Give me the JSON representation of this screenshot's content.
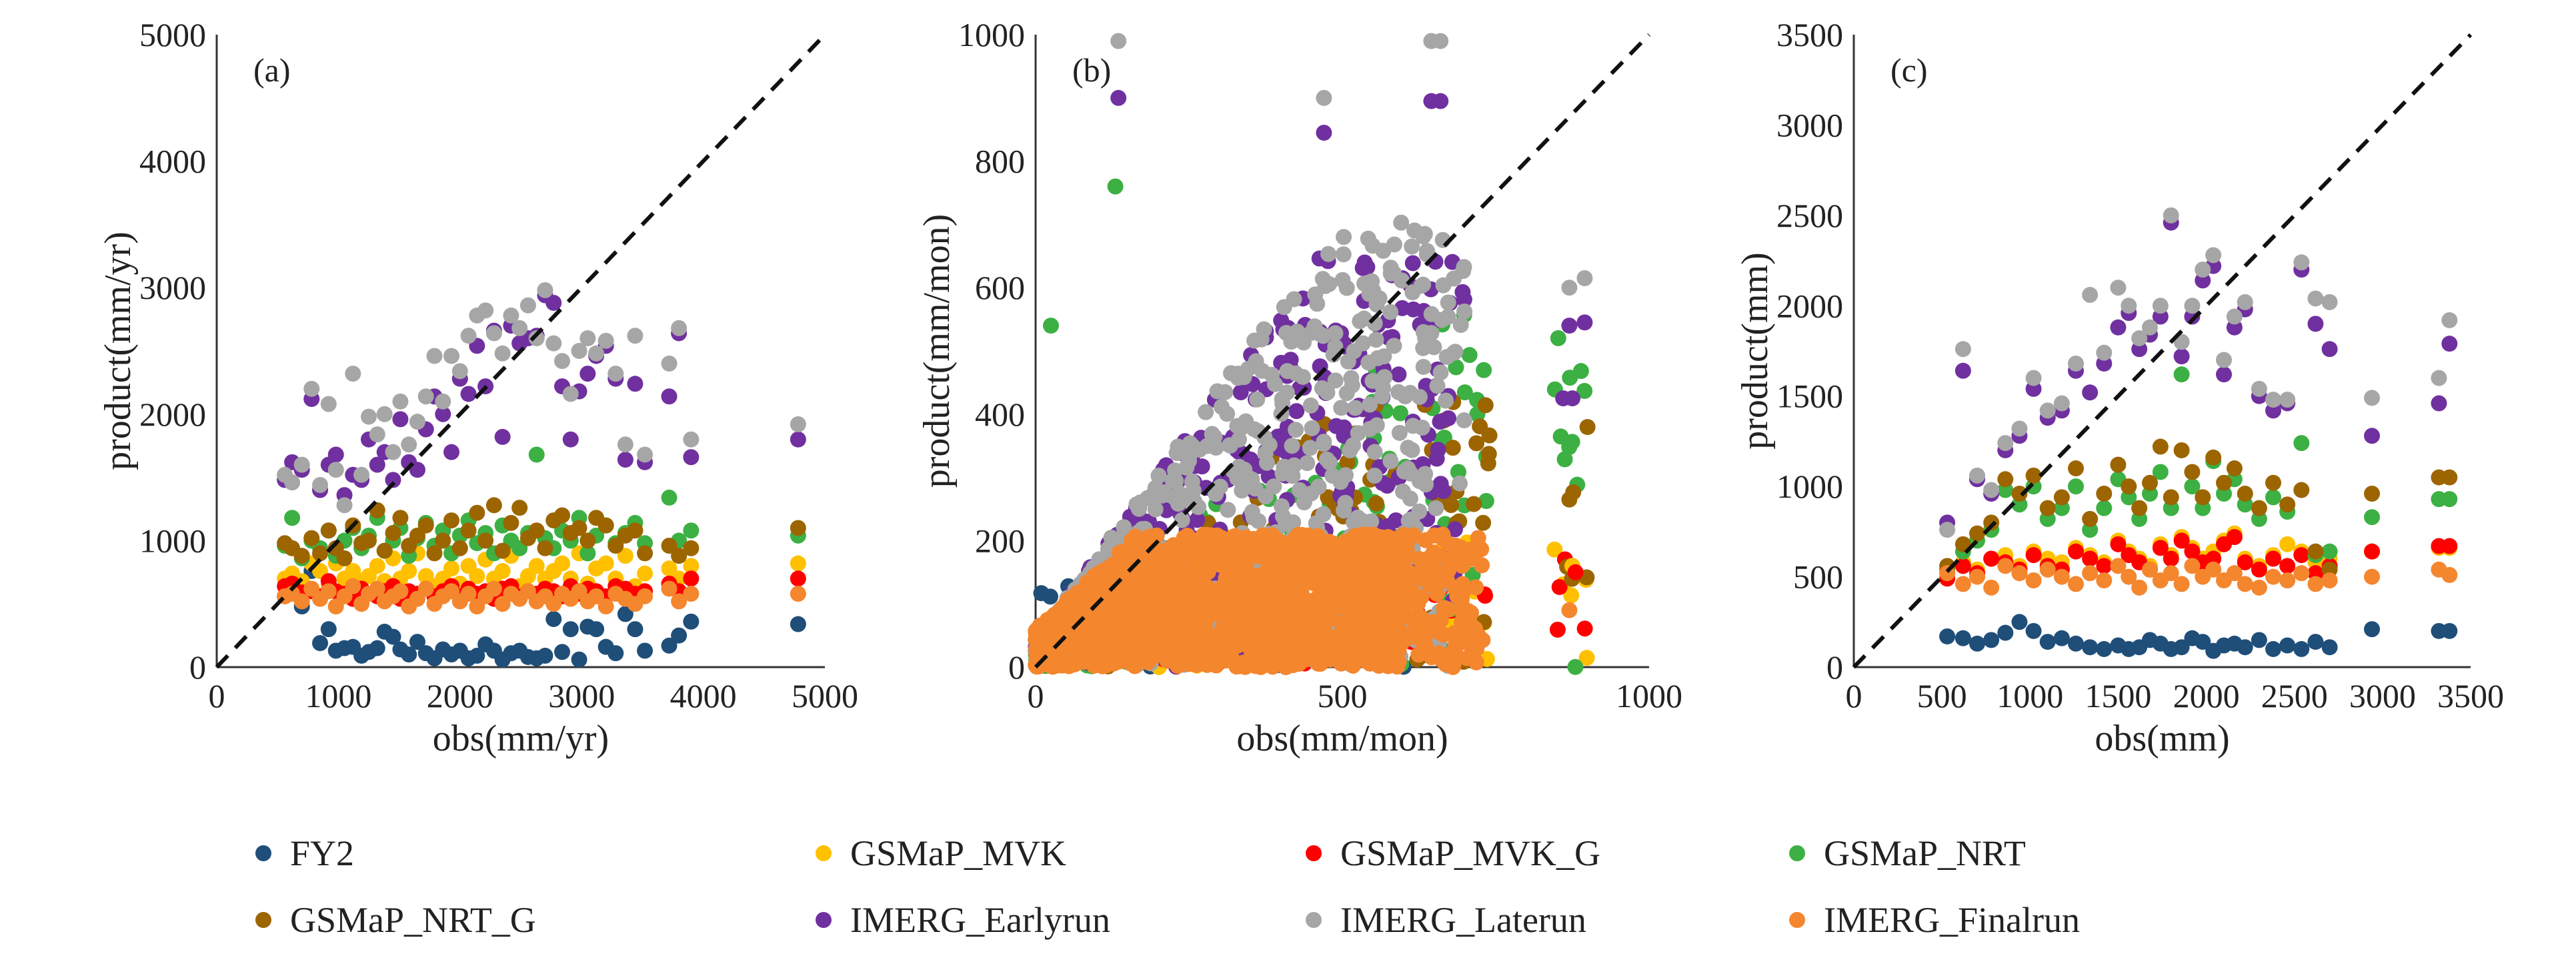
{
  "legend": [
    {
      "name": "FY2",
      "color": "#1f4e79"
    },
    {
      "name": "GSMaP_MVK",
      "color": "#ffc000"
    },
    {
      "name": "GSMaP_MVK_G",
      "color": "#ff0000"
    },
    {
      "name": "GSMaP_NRT",
      "color": "#3cb043"
    },
    {
      "name": "GSMaP_NRT_G",
      "color": "#9c6500"
    },
    {
      "name": "IMERG_Earlyrun",
      "color": "#7030a0"
    },
    {
      "name": "IMERG_Laterun",
      "color": "#a6a6a6"
    },
    {
      "name": "IMERG_Finalrun",
      "color": "#f4862e"
    }
  ],
  "chart_data": [
    {
      "type": "scatter",
      "panel_label": "(a)",
      "xlabel": "obs(mm/yr)",
      "ylabel": "product(mm/yr)",
      "xlim": [
        0,
        5000
      ],
      "ylim": [
        0,
        5000
      ],
      "xticks": [
        "0",
        "1000",
        "2000",
        "3000",
        "4000",
        "5000"
      ],
      "yticks": [
        "0",
        "1000",
        "2000",
        "3000",
        "4000",
        "5000"
      ],
      "reference_line": "1:1",
      "x": [
        560,
        620,
        700,
        780,
        850,
        920,
        980,
        1050,
        1120,
        1190,
        1250,
        1320,
        1380,
        1450,
        1510,
        1580,
        1650,
        1720,
        1790,
        1860,
        1930,
        2000,
        2070,
        2140,
        2210,
        2280,
        2350,
        2420,
        2490,
        2560,
        2630,
        2700,
        2770,
        2840,
        2910,
        2980,
        3050,
        3120,
        3200,
        3280,
        3360,
        3440,
        3520,
        3720,
        3800,
        3900,
        4780
      ],
      "series": [
        {
          "name": "FY2",
          "values": [
            560,
            600,
            480,
            760,
            190,
            300,
            130,
            150,
            160,
            90,
            120,
            150,
            280,
            240,
            140,
            100,
            200,
            110,
            70,
            140,
            100,
            130,
            70,
            90,
            180,
            130,
            60,
            110,
            130,
            80,
            70,
            90,
            380,
            120,
            300,
            60,
            320,
            300,
            160,
            110,
            420,
            300,
            130,
            170,
            250,
            360,
            340
          ]
        },
        {
          "name": "GSMaP_MVK",
          "values": [
            700,
            740,
            680,
            820,
            760,
            640,
            820,
            700,
            760,
            680,
            720,
            800,
            680,
            860,
            700,
            760,
            900,
            720,
            640,
            700,
            780,
            660,
            800,
            720,
            850,
            700,
            760,
            880,
            640,
            720,
            800,
            700,
            760,
            820,
            700,
            900,
            660,
            780,
            820,
            700,
            880,
            640,
            740,
            780,
            700,
            800,
            820
          ]
        },
        {
          "name": "GSMaP_MVK_G",
          "values": [
            640,
            660,
            590,
            600,
            560,
            680,
            600,
            580,
            540,
            620,
            580,
            560,
            600,
            640,
            540,
            600,
            580,
            620,
            560,
            600,
            640,
            560,
            620,
            580,
            600,
            540,
            620,
            640,
            560,
            600,
            580,
            620,
            600,
            560,
            640,
            580,
            620,
            600,
            560,
            640,
            620,
            580,
            600,
            660,
            600,
            700,
            700
          ]
        },
        {
          "name": "GSMaP_NRT",
          "values": [
            960,
            1180,
            860,
            1000,
            940,
            1080,
            880,
            1000,
            1100,
            940,
            1040,
            1180,
            920,
            1000,
            1100,
            880,
            1020,
            1140,
            960,
            1080,
            900,
            1040,
            1160,
            980,
            1060,
            900,
            1120,
            1000,
            940,
            1060,
            1680,
            1020,
            940,
            1080,
            1000,
            1180,
            900,
            1040,
            1120,
            980,
            1060,
            1140,
            980,
            1340,
            1000,
            1080,
            1040
          ]
        },
        {
          "name": "GSMaP_NRT_G",
          "values": [
            980,
            940,
            880,
            1020,
            900,
            1080,
            940,
            860,
            1120,
            980,
            1000,
            1240,
            920,
            1060,
            1180,
            960,
            1040,
            1120,
            900,
            1000,
            1160,
            940,
            1080,
            1220,
            1000,
            1280,
            920,
            1140,
            1260,
            1020,
            1080,
            940,
            1160,
            1200,
            1060,
            1100,
            1000,
            1180,
            1120,
            960,
            1040,
            1080,
            900,
            960,
            880,
            940,
            1100
          ]
        },
        {
          "name": "IMERG_Earlyrun",
          "values": [
            1480,
            1620,
            1560,
            2120,
            1400,
            1600,
            1680,
            1360,
            1520,
            1480,
            1800,
            1600,
            1700,
            1480,
            1960,
            1620,
            1560,
            1880,
            2140,
            2000,
            1700,
            2280,
            2160,
            2540,
            2220,
            2660,
            1820,
            2700,
            2560,
            2600,
            2620,
            2940,
            2880,
            2220,
            1800,
            2180,
            2320,
            2460,
            2540,
            2280,
            1640,
            2240,
            1620,
            2140,
            2640,
            1660,
            1800
          ]
        },
        {
          "name": "IMERG_Laterun",
          "values": [
            1520,
            1460,
            1600,
            2200,
            1440,
            2080,
            1560,
            1280,
            2320,
            1520,
            1980,
            1840,
            2000,
            1700,
            2100,
            1760,
            1940,
            2140,
            2460,
            2100,
            2460,
            2340,
            2620,
            2780,
            2820,
            2640,
            2480,
            2780,
            2680,
            2860,
            2600,
            2980,
            2560,
            2420,
            2160,
            2500,
            2600,
            2480,
            2580,
            2320,
            1760,
            2620,
            1680,
            2400,
            2680,
            1800,
            1920
          ]
        },
        {
          "name": "IMERG_Finalrun",
          "values": [
            560,
            580,
            520,
            620,
            540,
            600,
            480,
            560,
            640,
            500,
            580,
            620,
            520,
            560,
            600,
            480,
            540,
            620,
            500,
            560,
            600,
            520,
            580,
            480,
            560,
            620,
            500,
            580,
            540,
            600,
            520,
            560,
            500,
            580,
            540,
            600,
            520,
            560,
            480,
            580,
            540,
            500,
            560,
            620,
            520,
            580,
            580
          ]
        }
      ]
    },
    {
      "type": "scatter",
      "panel_label": "(b)",
      "xlabel": "obs(mm/mon)",
      "ylabel": "product(mm/mon)",
      "xlim": [
        0,
        1000
      ],
      "ylim": [
        0,
        1000
      ],
      "xticks": [
        "0",
        "500",
        "1000"
      ],
      "yticks": [
        "0",
        "200",
        "400",
        "600",
        "800",
        "1000"
      ],
      "reference_line": "1:1",
      "dense_cloud": true,
      "series_extent": [
        {
          "name": "FY2",
          "xmax": 600,
          "ymax": 150
        },
        {
          "name": "GSMaP_MVK",
          "xmax": 880,
          "ymax": 280
        },
        {
          "name": "GSMaP_MVK_G",
          "xmax": 880,
          "ymax": 230
        },
        {
          "name": "GSMaP_NRT",
          "xmax": 900,
          "ymax": 760
        },
        {
          "name": "GSMaP_NRT_G",
          "xmax": 900,
          "ymax": 560
        },
        {
          "name": "IMERG_Earlyrun",
          "xmax": 900,
          "ymax": 900
        },
        {
          "name": "IMERG_Laterun",
          "xmax": 900,
          "ymax": 990
        },
        {
          "name": "IMERG_Finalrun",
          "xmax": 880,
          "ymax": 210
        }
      ],
      "highlight_points": [
        {
          "name": "IMERG_Laterun",
          "x": 135,
          "y": 990
        },
        {
          "name": "IMERG_Earlyrun",
          "x": 135,
          "y": 900
        },
        {
          "name": "GSMaP_NRT",
          "x": 130,
          "y": 760
        },
        {
          "name": "IMERG_Laterun",
          "x": 645,
          "y": 990
        },
        {
          "name": "IMERG_Laterun",
          "x": 660,
          "y": 990
        },
        {
          "name": "IMERG_Earlyrun",
          "x": 645,
          "y": 895
        },
        {
          "name": "IMERG_Earlyrun",
          "x": 660,
          "y": 895
        },
        {
          "name": "IMERG_Laterun",
          "x": 470,
          "y": 900
        },
        {
          "name": "IMERG_Earlyrun",
          "x": 470,
          "y": 845
        },
        {
          "name": "IMERG_Laterun",
          "x": 870,
          "y": 600
        },
        {
          "name": "IMERG_Laterun",
          "x": 895,
          "y": 615
        },
        {
          "name": "IMERG_Earlyrun",
          "x": 870,
          "y": 540
        },
        {
          "name": "IMERG_Earlyrun",
          "x": 895,
          "y": 545
        },
        {
          "name": "IMERG_Earlyrun",
          "x": 860,
          "y": 425
        },
        {
          "name": "IMERG_Earlyrun",
          "x": 875,
          "y": 425
        },
        {
          "name": "GSMaP_NRT_G",
          "x": 870,
          "y": 265
        },
        {
          "name": "GSMaP_MVK",
          "x": 875,
          "y": 160
        },
        {
          "name": "GSMaP_MVK_G",
          "x": 880,
          "y": 150
        },
        {
          "name": "IMERG_Finalrun",
          "x": 870,
          "y": 90
        },
        {
          "name": "GSMaP_NRT",
          "x": 25,
          "y": 540
        }
      ]
    },
    {
      "type": "scatter",
      "panel_label": "(c)",
      "xlabel": "obs(mm)",
      "ylabel": "product(mm)",
      "xlim": [
        0,
        3500
      ],
      "ylim": [
        0,
        3500
      ],
      "xticks": [
        "0",
        "500",
        "1000",
        "1500",
        "2000",
        "2500",
        "3000",
        "3500"
      ],
      "yticks": [
        "0",
        "500",
        "1000",
        "1500",
        "2000",
        "2500",
        "3000",
        "3500"
      ],
      "reference_line": "1:1",
      "x": [
        530,
        620,
        700,
        780,
        860,
        940,
        1020,
        1100,
        1180,
        1260,
        1340,
        1420,
        1500,
        1560,
        1620,
        1680,
        1740,
        1800,
        1860,
        1920,
        1980,
        2040,
        2100,
        2160,
        2220,
        2300,
        2380,
        2460,
        2540,
        2620,
        2700,
        2940,
        3320,
        3380
      ],
      "series": [
        {
          "name": "FY2",
          "values": [
            170,
            160,
            130,
            150,
            190,
            250,
            200,
            140,
            160,
            130,
            110,
            100,
            120,
            100,
            110,
            150,
            130,
            100,
            110,
            160,
            140,
            90,
            120,
            130,
            110,
            150,
            100,
            120,
            100,
            140,
            110,
            210,
            200,
            200
          ]
        },
        {
          "name": "GSMaP_MVK",
          "values": [
            520,
            580,
            540,
            600,
            620,
            560,
            640,
            600,
            580,
            660,
            620,
            580,
            700,
            640,
            600,
            560,
            680,
            620,
            720,
            660,
            600,
            640,
            700,
            740,
            600,
            560,
            620,
            680,
            640,
            580,
            600,
            640,
            660,
            660
          ]
        },
        {
          "name": "GSMaP_MVK_G",
          "values": [
            490,
            560,
            520,
            600,
            580,
            540,
            620,
            560,
            540,
            640,
            600,
            560,
            680,
            620,
            580,
            540,
            660,
            600,
            700,
            640,
            580,
            600,
            680,
            720,
            580,
            540,
            600,
            560,
            620,
            520,
            560,
            640,
            670,
            670
          ]
        },
        {
          "name": "GSMaP_NRT",
          "values": [
            540,
            640,
            700,
            760,
            980,
            900,
            1000,
            820,
            880,
            1000,
            760,
            880,
            1040,
            940,
            820,
            960,
            1080,
            880,
            1620,
            1000,
            880,
            1140,
            960,
            1040,
            900,
            820,
            940,
            860,
            1240,
            620,
            640,
            830,
            930,
            930
          ]
        },
        {
          "name": "GSMaP_NRT_G",
          "values": [
            560,
            680,
            740,
            800,
            1040,
            960,
            1060,
            880,
            940,
            1100,
            820,
            960,
            1120,
            1000,
            880,
            1020,
            1220,
            940,
            1200,
            1080,
            940,
            1160,
            1020,
            1100,
            960,
            880,
            1020,
            900,
            980,
            640,
            540,
            960,
            1050,
            1050
          ]
        },
        {
          "name": "IMERG_Earlyrun",
          "values": [
            800,
            1640,
            1040,
            960,
            1200,
            1280,
            1540,
            1380,
            1420,
            1640,
            1520,
            1680,
            1880,
            1960,
            1760,
            1840,
            1940,
            2460,
            1720,
            1940,
            2140,
            2220,
            1620,
            1880,
            1980,
            1500,
            1420,
            1460,
            2200,
            1900,
            1760,
            1280,
            1460,
            1790
          ]
        },
        {
          "name": "IMERG_Laterun",
          "values": [
            760,
            1760,
            1060,
            980,
            1240,
            1320,
            1600,
            1420,
            1460,
            1680,
            2060,
            1740,
            2100,
            2000,
            1820,
            1880,
            2000,
            2500,
            1800,
            2000,
            2200,
            2280,
            1700,
            1940,
            2020,
            1540,
            1480,
            1480,
            2240,
            2040,
            2020,
            1490,
            1600,
            1920
          ]
        },
        {
          "name": "IMERG_Finalrun",
          "values": [
            520,
            460,
            500,
            440,
            560,
            520,
            480,
            540,
            500,
            460,
            520,
            480,
            560,
            500,
            440,
            540,
            480,
            520,
            460,
            560,
            500,
            540,
            480,
            520,
            460,
            440,
            500,
            480,
            520,
            460,
            480,
            500,
            540,
            510
          ]
        }
      ]
    }
  ]
}
